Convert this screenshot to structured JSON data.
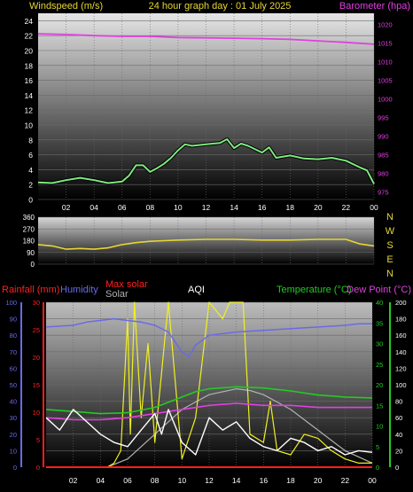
{
  "header": {
    "wind_title": "Windspeed (m/s)",
    "graph_title": "24 hour graph day : 01 July 2025",
    "baro_title": "Barometer (hpa)"
  },
  "direction_letters": [
    "N",
    "W",
    "S",
    "E",
    "N"
  ],
  "legend": {
    "rainfall": "Rainfall (mm)",
    "humidity": "Humidity",
    "max_solar": "Max solar",
    "solar": "Solar",
    "aqi": "AQI",
    "temperature": "Temperature (°C)",
    "dew_point": "Dew Point (°C)"
  },
  "colors": {
    "wind": "#7fe87f",
    "barometer": "#e040e0",
    "direction": "#e6d633",
    "rainfall": "#ff2020",
    "humidity": "#6a6ae8",
    "max_solar": "#b0b0b0",
    "solar": "#f0f020",
    "aqi": "#ffffff",
    "temperature": "#22cc22",
    "dew_point": "#e040e0",
    "title": "#e6d633"
  },
  "chart_data": [
    {
      "type": "line",
      "title": "24 hour graph day : 01 July 2025",
      "xlabel": "",
      "x_ticks": [
        "02",
        "04",
        "06",
        "08",
        "10",
        "12",
        "14",
        "16",
        "18",
        "20",
        "22",
        "00"
      ],
      "left_axis": {
        "label": "Windspeed (m/s)",
        "ylim": [
          0,
          25
        ],
        "ticks": [
          0,
          2,
          4,
          6,
          8,
          10,
          12,
          14,
          16,
          18,
          20,
          22,
          24
        ]
      },
      "right_axis": {
        "label": "Barometer (hpa)",
        "ylim": [
          973,
          1023
        ],
        "ticks": [
          975,
          980,
          985,
          990,
          995,
          1000,
          1005,
          1010,
          1015,
          1020
        ]
      },
      "series": [
        {
          "name": "Windspeed (m/s)",
          "axis": "left",
          "x": [
            0,
            1,
            2,
            3,
            4,
            5,
            6,
            6.5,
            7,
            7.5,
            8,
            8.5,
            9,
            9.5,
            10,
            10.5,
            11,
            12,
            13,
            13.5,
            14,
            14.5,
            15,
            16,
            16.5,
            17,
            18,
            19,
            20,
            21,
            22,
            23,
            23.5,
            24
          ],
          "values": [
            2.3,
            2.2,
            2.6,
            2.9,
            2.6,
            2.2,
            2.4,
            3.2,
            4.6,
            4.6,
            3.7,
            4.2,
            4.8,
            5.6,
            6.6,
            7.4,
            7.2,
            7.4,
            7.6,
            8.1,
            6.9,
            7.5,
            7.2,
            6.3,
            7.0,
            5.6,
            5.9,
            5.5,
            5.4,
            5.6,
            5.2,
            4.3,
            3.9,
            2.1
          ]
        },
        {
          "name": "Barometer (hpa)",
          "axis": "right",
          "x": [
            0,
            2,
            4,
            6,
            8,
            10,
            12,
            14,
            16,
            18,
            20,
            22,
            24
          ],
          "values": [
            1017.5,
            1017.3,
            1017.0,
            1016.8,
            1016.8,
            1016.5,
            1016.4,
            1016.3,
            1016.2,
            1016.0,
            1015.6,
            1015.2,
            1014.7
          ]
        }
      ],
      "grid": true
    },
    {
      "type": "line",
      "title": "",
      "x_ticks": [],
      "left_axis": {
        "label": "",
        "ylim": [
          0,
          360
        ],
        "ticks": [
          0,
          90,
          180,
          270,
          360
        ]
      },
      "series": [
        {
          "name": "Wind direction",
          "x": [
            0,
            1,
            2,
            3,
            4,
            5,
            6,
            7,
            8,
            9,
            10,
            12,
            14,
            16,
            18,
            20,
            22,
            23,
            24
          ],
          "values": [
            150,
            140,
            115,
            120,
            115,
            125,
            150,
            165,
            175,
            180,
            185,
            190,
            190,
            185,
            185,
            190,
            190,
            155,
            140
          ]
        }
      ],
      "grid": true
    },
    {
      "type": "line",
      "title": "",
      "x_ticks": [
        "02",
        "04",
        "06",
        "08",
        "10",
        "12",
        "14",
        "16",
        "18",
        "20",
        "22",
        "00"
      ],
      "axes": {
        "humidity": {
          "ylim": [
            0,
            100
          ],
          "ticks": [
            0,
            10,
            20,
            30,
            40,
            50,
            60,
            70,
            80,
            90,
            100
          ]
        },
        "rainfall": {
          "ylim": [
            0,
            30
          ],
          "ticks": [
            0,
            5,
            10,
            15,
            20,
            25,
            30
          ]
        },
        "temperature": {
          "ylim": [
            0,
            40
          ],
          "ticks": [
            0,
            5,
            10,
            15,
            20,
            25,
            30,
            35,
            40
          ]
        },
        "aqi": {
          "ylim": [
            0,
            200
          ],
          "ticks": [
            0,
            20,
            40,
            60,
            80,
            100,
            120,
            140,
            160,
            180,
            200
          ]
        }
      },
      "series": [
        {
          "name": "Humidity",
          "axis": "humidity",
          "x": [
            0,
            2,
            3,
            5,
            6,
            7,
            8,
            9,
            10,
            10.5,
            11,
            12,
            14,
            16,
            18,
            20,
            22,
            23,
            24
          ],
          "values": [
            85,
            86,
            88,
            90,
            89,
            88,
            86,
            82,
            70,
            67,
            74,
            80,
            82,
            83,
            84,
            85,
            86,
            87,
            87
          ]
        },
        {
          "name": "Rainfall (mm)",
          "axis": "rainfall",
          "x": [
            0,
            24
          ],
          "values": [
            0,
            0
          ]
        },
        {
          "name": "Temperature (°C)",
          "axis": "temperature",
          "x": [
            0,
            2,
            4,
            6,
            8,
            10,
            11,
            12,
            14,
            16,
            18,
            20,
            22,
            24
          ],
          "values": [
            14,
            13.5,
            13,
            13.2,
            14.5,
            17,
            18.3,
            19,
            19.5,
            19.2,
            18.5,
            17.5,
            17,
            16.8
          ]
        },
        {
          "name": "Dew Point (°C)",
          "axis": "temperature",
          "x": [
            0,
            2,
            4,
            6,
            8,
            10,
            12,
            14,
            16,
            18,
            20,
            22,
            24
          ],
          "values": [
            12,
            11.5,
            11.5,
            12,
            13,
            14,
            15,
            15.5,
            15,
            15,
            14.5,
            14.5,
            14.5
          ]
        },
        {
          "name": "Max solar",
          "axis": "aqi",
          "x": [
            4.5,
            6,
            8,
            10,
            12,
            14,
            15,
            16,
            18,
            20,
            22,
            24
          ],
          "values": [
            0,
            10,
            40,
            70,
            88,
            95,
            93,
            88,
            70,
            45,
            20,
            5
          ]
        },
        {
          "name": "Solar",
          "axis": "aqi",
          "x": [
            0,
            4.5,
            5,
            5.5,
            6,
            6.2,
            6.5,
            7,
            7.5,
            8,
            9,
            10,
            11,
            12,
            12.5,
            13,
            13.5,
            14,
            14.5,
            15,
            16,
            16.5,
            17,
            18,
            19,
            20,
            21,
            22,
            23,
            24
          ],
          "values": [
            0,
            0,
            5,
            20,
            180,
            40,
            200,
            60,
            150,
            30,
            200,
            10,
            60,
            200,
            190,
            180,
            200,
            200,
            200,
            40,
            30,
            80,
            20,
            15,
            40,
            35,
            20,
            10,
            5,
            5
          ]
        },
        {
          "name": "AQI",
          "axis": "aqi",
          "x": [
            0,
            1,
            2,
            3,
            4,
            5,
            6,
            7,
            8,
            8.5,
            9,
            10,
            11,
            12,
            13,
            14,
            15,
            16,
            17,
            18,
            19,
            20,
            21,
            22,
            23,
            24
          ],
          "values": [
            60,
            45,
            70,
            55,
            40,
            30,
            25,
            45,
            65,
            40,
            70,
            30,
            15,
            60,
            45,
            55,
            35,
            25,
            20,
            35,
            30,
            20,
            25,
            15,
            20,
            18
          ]
        }
      ],
      "grid": true
    }
  ]
}
